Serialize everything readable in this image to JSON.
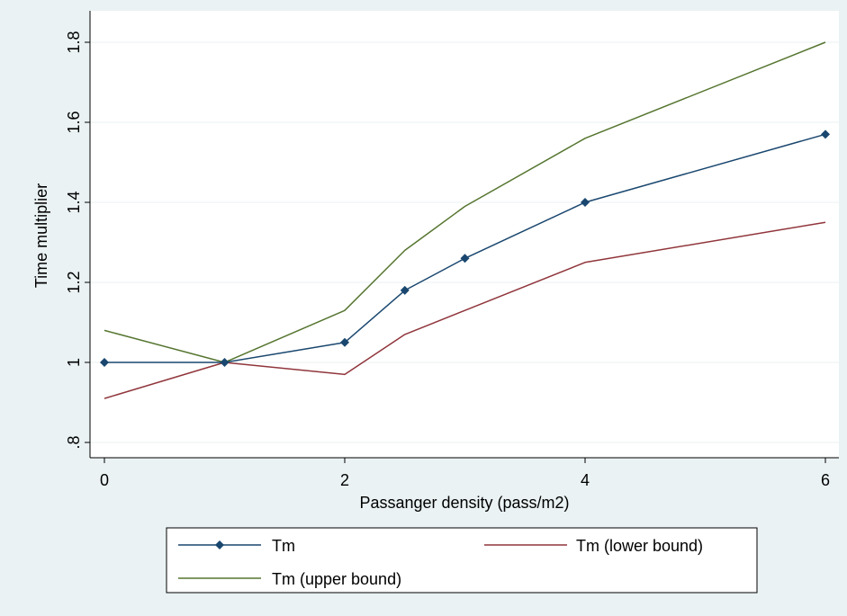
{
  "chart_data": {
    "type": "line",
    "title": "",
    "xlabel": "Passanger density (pass/m2)",
    "ylabel": "Time multiplier",
    "xlim": [
      0,
      6
    ],
    "ylim": [
      0.8,
      1.8
    ],
    "xticks": [
      0,
      2,
      4,
      6
    ],
    "xtick_labels": [
      "0",
      "2",
      "4",
      "6"
    ],
    "yticks": [
      0.8,
      1.0,
      1.2,
      1.4,
      1.6,
      1.8
    ],
    "ytick_labels": [
      ".8",
      "1",
      "1.2",
      "1.4",
      "1.6",
      "1.8"
    ],
    "grid": true,
    "legend_position": "bottom",
    "series": [
      {
        "name": "Tm",
        "color": "#1a476f",
        "marker": "diamond",
        "x": [
          0,
          1,
          2,
          2.5,
          3,
          4,
          6
        ],
        "y": [
          1.0,
          1.0,
          1.05,
          1.18,
          1.26,
          1.4,
          1.57
        ]
      },
      {
        "name": "Tm (lower bound)",
        "color": "#90353b",
        "marker": "none",
        "x": [
          0,
          1,
          2,
          2.5,
          3,
          4,
          6
        ],
        "y": [
          0.91,
          1.0,
          0.97,
          1.07,
          1.13,
          1.25,
          1.35
        ]
      },
      {
        "name": "Tm (upper bound)",
        "color": "#55752f",
        "marker": "none",
        "x": [
          0,
          1,
          2,
          2.5,
          3,
          4,
          6
        ],
        "y": [
          1.08,
          1.0,
          1.13,
          1.28,
          1.39,
          1.56,
          1.8
        ]
      }
    ]
  }
}
